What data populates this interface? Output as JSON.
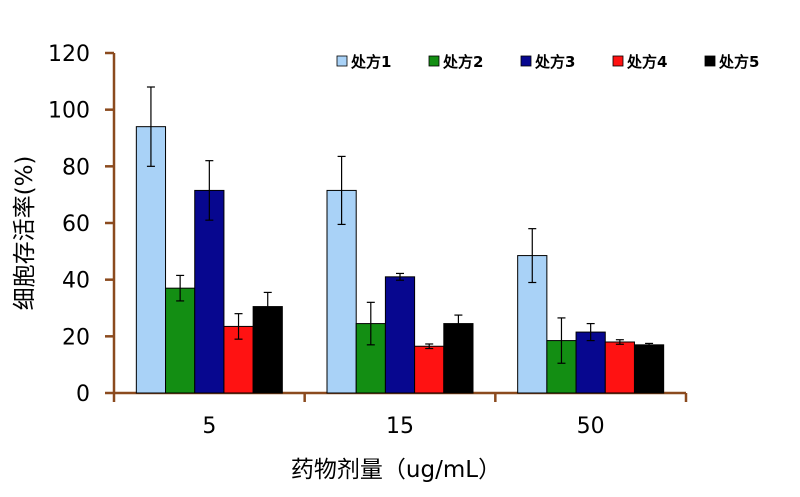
{
  "colors": {
    "axis": "#8B4A1E",
    "text": "#000000",
    "series": [
      "#A9D2F7",
      "#138E13",
      "#07078F",
      "#FF1212",
      "#000000"
    ]
  },
  "chart_data": {
    "type": "bar",
    "categories": [
      "5",
      "15",
      "50"
    ],
    "series": [
      {
        "name": "处方1",
        "values": [
          94,
          71.5,
          48.5
        ],
        "errors": [
          14,
          12,
          9.5
        ]
      },
      {
        "name": "处方2",
        "values": [
          37,
          24.5,
          18.5
        ],
        "errors": [
          4.5,
          7.5,
          8
        ]
      },
      {
        "name": "处方3",
        "values": [
          71.5,
          41,
          21.5
        ],
        "errors": [
          10.5,
          1.2,
          3
        ]
      },
      {
        "name": "处方4",
        "values": [
          23.5,
          16.5,
          18
        ],
        "errors": [
          4.5,
          0.8,
          0.8
        ]
      },
      {
        "name": "处方5",
        "values": [
          30.5,
          24.5,
          17
        ],
        "errors": [
          5,
          3,
          0.5
        ]
      }
    ],
    "xlabel": "药物剂量（ug/mL）",
    "ylabel": "细胞存活率(%)",
    "ylim": [
      0,
      120
    ],
    "yticks": [
      "0",
      "20",
      "40",
      "60",
      "80",
      "100",
      "120"
    ],
    "legend_position": "top-right",
    "grid": false
  }
}
